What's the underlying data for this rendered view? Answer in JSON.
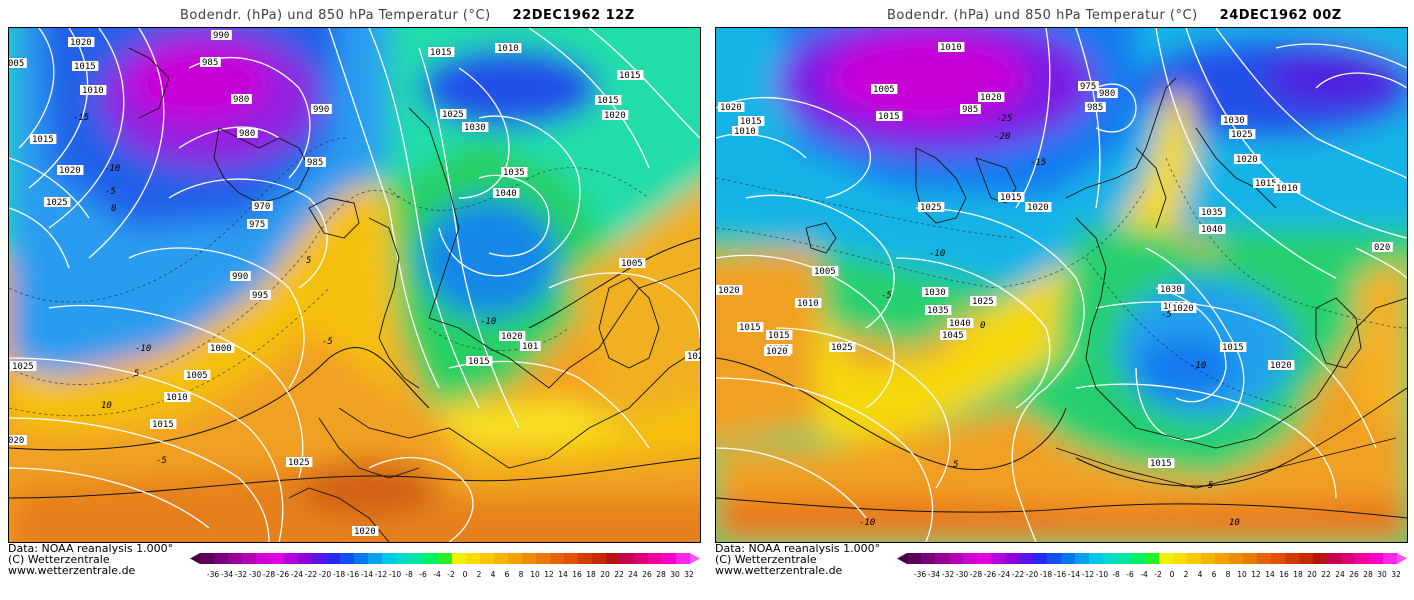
{
  "panels": [
    {
      "id": "left",
      "title": "Bodendr. (hPa) und 850 hPa Temperatur (°C)",
      "date": "22DEC1962 12Z",
      "isobar_labels": [
        {
          "t": "1020"
        },
        {
          "t": "1015"
        },
        {
          "t": "1010"
        },
        {
          "t": "005"
        },
        {
          "t": "990"
        },
        {
          "t": "985"
        },
        {
          "t": "980"
        },
        {
          "t": "980"
        },
        {
          "t": "990"
        },
        {
          "t": "985"
        },
        {
          "t": "1015"
        },
        {
          "t": "1020"
        },
        {
          "t": "1025"
        },
        {
          "t": "970"
        },
        {
          "t": "975"
        },
        {
          "t": "990"
        },
        {
          "t": "995"
        },
        {
          "t": "1000"
        },
        {
          "t": "1005"
        },
        {
          "t": "1010"
        },
        {
          "t": "1015"
        },
        {
          "t": "1025"
        },
        {
          "t": "1025"
        },
        {
          "t": "020"
        },
        {
          "t": "1020"
        },
        {
          "t": "1015"
        },
        {
          "t": "1010"
        },
        {
          "t": "1015"
        },
        {
          "t": "1025"
        },
        {
          "t": "1030"
        },
        {
          "t": "1015"
        },
        {
          "t": "1020"
        },
        {
          "t": "1035"
        },
        {
          "t": "1040"
        },
        {
          "t": "1005"
        },
        {
          "t": "1020"
        },
        {
          "t": "1015"
        },
        {
          "t": "101"
        },
        {
          "t": "1020"
        }
      ],
      "temp_labels": [
        "-15",
        "-10",
        "-5",
        "0",
        "5",
        "-5",
        "-10",
        "5",
        "10",
        "-5",
        "-10"
      ]
    },
    {
      "id": "right",
      "title": "Bodendr. (hPa) und 850 hPa Temperatur (°C)",
      "date": "24DEC1962 00Z",
      "isobar_labels": [
        {
          "t": "1020"
        },
        {
          "t": "1015"
        },
        {
          "t": "1010"
        },
        {
          "t": "1005"
        },
        {
          "t": "1015"
        },
        {
          "t": "1010"
        },
        {
          "t": "1020"
        },
        {
          "t": "985"
        },
        {
          "t": "1025"
        },
        {
          "t": "1015"
        },
        {
          "t": "1020"
        },
        {
          "t": "975"
        },
        {
          "t": "980"
        },
        {
          "t": "985"
        },
        {
          "t": "1020"
        },
        {
          "t": "1015"
        },
        {
          "t": "1025"
        },
        {
          "t": "1030"
        },
        {
          "t": "1035"
        },
        {
          "t": "1040"
        },
        {
          "t": "1045"
        },
        {
          "t": "1025"
        },
        {
          "t": "020"
        },
        {
          "t": "1005"
        },
        {
          "t": "1010"
        },
        {
          "t": "1015"
        },
        {
          "t": "1020"
        },
        {
          "t": "1025"
        },
        {
          "t": "1030"
        },
        {
          "t": "1025"
        },
        {
          "t": "1020"
        },
        {
          "t": "1015"
        },
        {
          "t": "1010"
        },
        {
          "t": "1035"
        },
        {
          "t": "1040"
        },
        {
          "t": "1030"
        },
        {
          "t": "1025"
        },
        {
          "t": "1020"
        },
        {
          "t": "1015"
        },
        {
          "t": "1020"
        },
        {
          "t": "1015"
        }
      ],
      "temp_labels": [
        "-25",
        "-20",
        "-15",
        "-10",
        "-5",
        "0",
        "5",
        "-5",
        "-10",
        "5",
        "10",
        "-10"
      ]
    }
  ],
  "footer": {
    "line1": "Data: NOAA reanalysis 1.000°",
    "line2": "(C) Wetterzentrale",
    "line3": "www.wetterzentrale.de"
  },
  "colorbar": {
    "ticks": [
      "-36",
      "-34",
      "-32",
      "-30",
      "-28",
      "-26",
      "-24",
      "-22",
      "-20",
      "-18",
      "-16",
      "-14",
      "-12",
      "-10",
      "-8",
      "-6",
      "-4",
      "-2",
      "0",
      "2",
      "4",
      "6",
      "8",
      "10",
      "12",
      "14",
      "16",
      "18",
      "20",
      "22",
      "24",
      "26",
      "28",
      "30",
      "32"
    ],
    "colors": [
      "#5a005a",
      "#780078",
      "#960096",
      "#b400b4",
      "#d200d2",
      "#e000e0",
      "#b400dc",
      "#8c00dc",
      "#5a14e6",
      "#2828f0",
      "#1450f0",
      "#0078f0",
      "#00a0f0",
      "#00c8e6",
      "#00dcc8",
      "#00e6a0",
      "#00f064",
      "#28f028",
      "#f0f000",
      "#fadc00",
      "#fac800",
      "#f5b400",
      "#f5a000",
      "#f08c00",
      "#eb7800",
      "#e66400",
      "#e15000",
      "#d23c00",
      "#c82800",
      "#b41414",
      "#c80050",
      "#dc0078",
      "#f000a0",
      "#fa00c8",
      "#ff28e6"
    ],
    "end_left": "#460046",
    "end_right": "#ff50ff"
  }
}
